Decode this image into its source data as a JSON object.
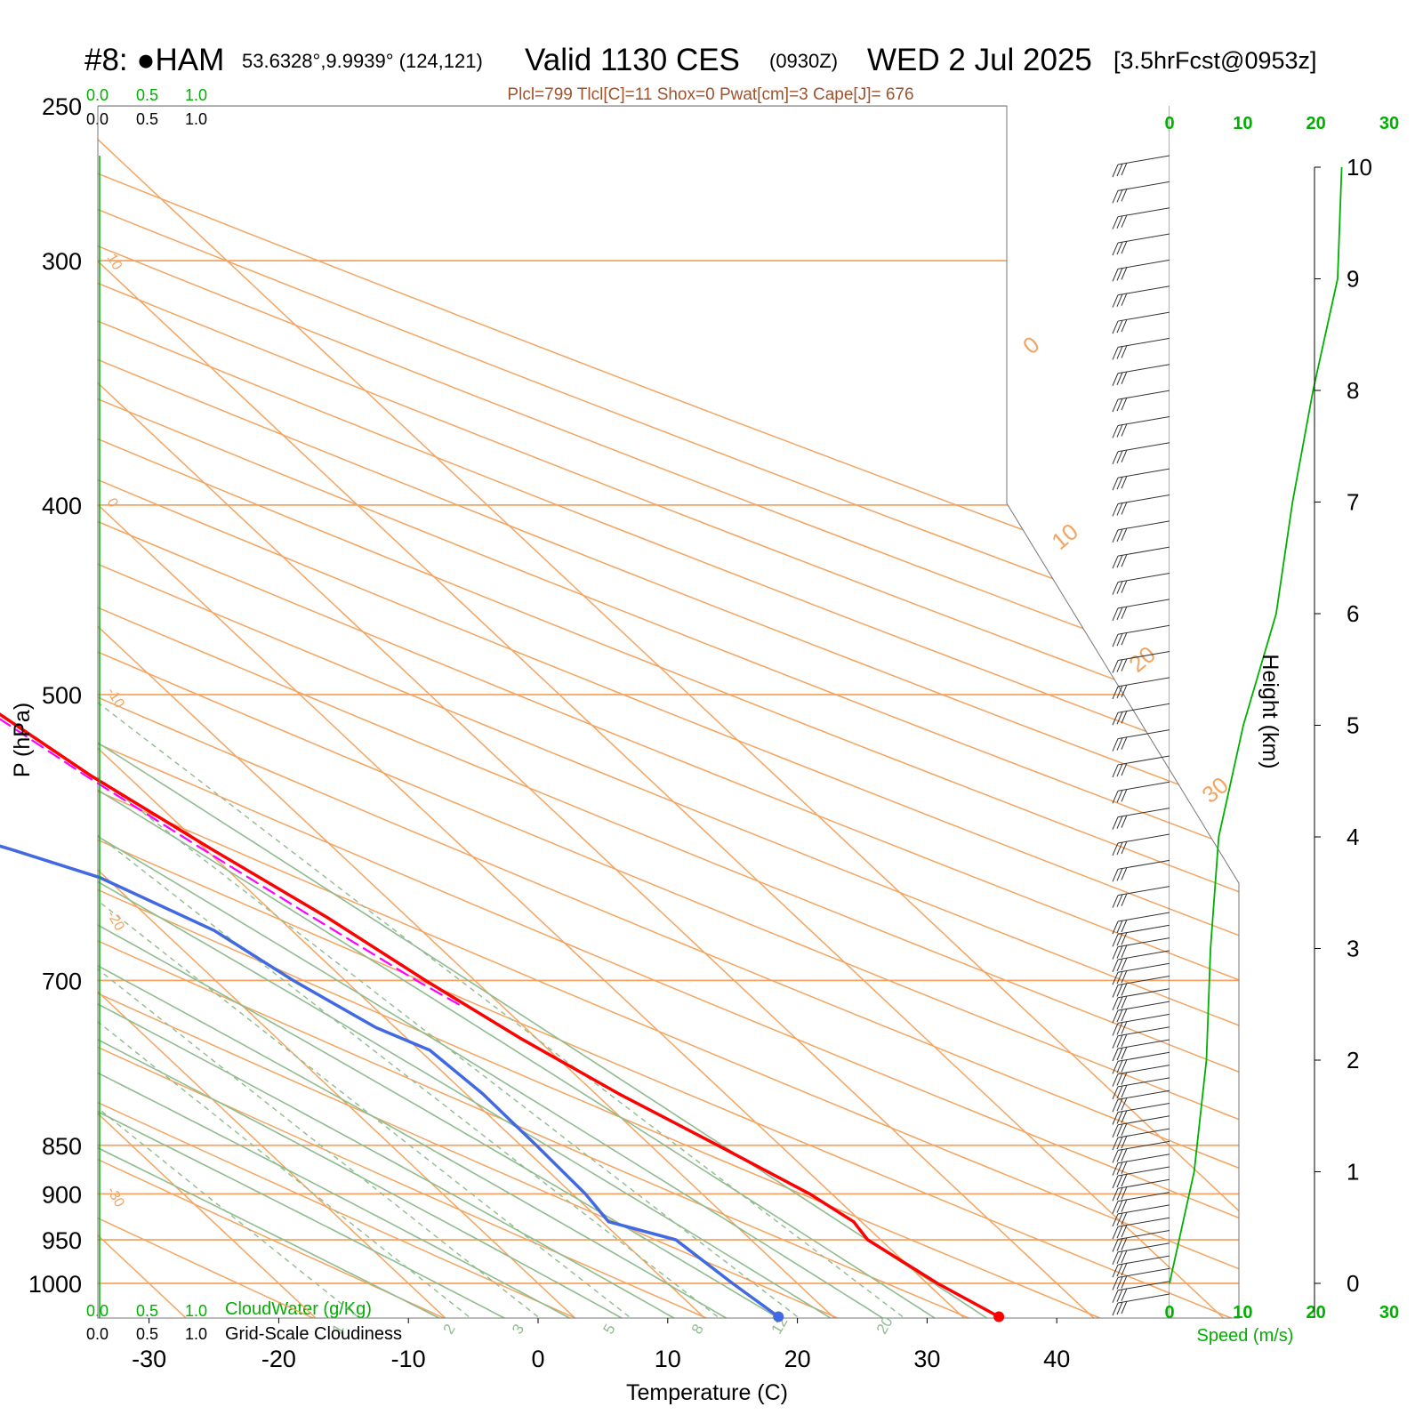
{
  "header": {
    "station": "#8: ●HAM",
    "coords": "53.6328°,9.9939° (124,121)",
    "valid_label": "Valid 1130 CES",
    "zulu": "(0930Z)",
    "date": "WED 2 Jul 2025",
    "forecast": "[3.5hrFcst@0953z]",
    "stats": "Plcl=799 Tlcl[C]=11 Shox=0 Pwat[cm]=3 Cape[J]= 676"
  },
  "colors": {
    "temperature": "#ff0000",
    "dewpoint": "#4169e1",
    "parcel": "#ff00ff",
    "isotherm": "#f4a460",
    "moist_adiabat": "#8fbc8f",
    "mixing_ratio": "#8fbc8f",
    "wind_speed": "#00b000",
    "stats": "#a0522d"
  },
  "cloud_scale": {
    "cloudwater_ticks": [
      "0.0",
      "0.5",
      "1.0"
    ],
    "cloudiness_ticks": [
      "0.0",
      "0.5",
      "1.0"
    ],
    "cloudwater_label": "CloudWater (g/Kg)",
    "cloudiness_label": "Grid-Scale Cloudiness"
  },
  "chart_data": {
    "type": "line",
    "subtype": "skew-T log-P sounding",
    "xlabel": "Temperature (C)",
    "ylabel": "P (hPa)",
    "y2label": "Height (km)",
    "xlim": [
      -30,
      40
    ],
    "ylim": [
      1050,
      250
    ],
    "y_scale": "log",
    "x_ticks": [
      "-30",
      "-20",
      "-10",
      "0",
      "10",
      "20",
      "30",
      "40"
    ],
    "pressure_ticks": [
      "250",
      "300",
      "400",
      "500",
      "700",
      "850",
      "900",
      "950",
      "1000"
    ],
    "height_ticks": [
      "0",
      "1",
      "2",
      "3",
      "4",
      "5",
      "6",
      "7",
      "8",
      "9",
      "10"
    ],
    "mixing_ratio_labels": [
      "1",
      "2",
      "3",
      "5",
      "8",
      "12",
      "20"
    ],
    "isotherm_edge_labels": [
      "10",
      "0",
      "-10",
      "-20",
      "-30"
    ],
    "isotherm_top_labels": [
      "0",
      "10",
      "20",
      "30"
    ],
    "series": [
      {
        "name": "Temperature",
        "points": [
          [
            1040,
            32.8
          ],
          [
            1000,
            30.8
          ],
          [
            950,
            29.0
          ],
          [
            930,
            29.4
          ],
          [
            900,
            28.3
          ],
          [
            850,
            25.2
          ],
          [
            800,
            21.8
          ],
          [
            750,
            18.8
          ],
          [
            700,
            16.2
          ],
          [
            650,
            13.8
          ],
          [
            600,
            10.5
          ],
          [
            550,
            7.2
          ],
          [
            500,
            4.6
          ],
          [
            450,
            2.0
          ],
          [
            400,
            -1.0
          ],
          [
            350,
            -5.0
          ],
          [
            300,
            -10.5
          ],
          [
            262,
            -15.8
          ]
        ]
      },
      {
        "name": "Dewpoint",
        "points": [
          [
            1040,
            15.8
          ],
          [
            1000,
            15.0
          ],
          [
            950,
            14.2
          ],
          [
            930,
            10.5
          ],
          [
            900,
            11.0
          ],
          [
            850,
            11.2
          ],
          [
            800,
            11.3
          ],
          [
            760,
            10.8
          ],
          [
            740,
            8.5
          ],
          [
            700,
            6.0
          ],
          [
            660,
            4.0
          ],
          [
            620,
            -0.5
          ],
          [
            600,
            -5.0
          ],
          [
            550,
            -18.0
          ],
          [
            510,
            -24.0
          ],
          [
            480,
            -26.0
          ],
          [
            450,
            -21.0
          ],
          [
            420,
            -26.0
          ],
          [
            400,
            -30.0
          ],
          [
            375,
            -24.0
          ],
          [
            350,
            -20.0
          ],
          [
            325,
            -21.0
          ],
          [
            300,
            -24.0
          ],
          [
            262,
            -28.0
          ]
        ]
      },
      {
        "name": "Parcel",
        "points": [
          [
            720,
            16.8
          ],
          [
            700,
            15.5
          ],
          [
            650,
            12.7
          ],
          [
            600,
            9.8
          ],
          [
            550,
            6.8
          ],
          [
            500,
            4.0
          ],
          [
            450,
            1.3
          ],
          [
            400,
            -1.8
          ],
          [
            350,
            -5.6
          ],
          [
            300,
            -10.2
          ],
          [
            262,
            -14.6
          ]
        ]
      },
      {
        "name": "Wind speed (m/s)",
        "points": [
          [
            0.0,
            0.0
          ],
          [
            0.5,
            0.3
          ],
          [
            1.0,
            0.6
          ],
          [
            2.0,
            0.9
          ],
          [
            3.0,
            1.0
          ],
          [
            4.0,
            1.2
          ],
          [
            5.0,
            1.8
          ],
          [
            6.0,
            2.6
          ],
          [
            7.0,
            3.0
          ],
          [
            8.0,
            3.5
          ],
          [
            9.0,
            4.1
          ],
          [
            10.0,
            4.2
          ]
        ],
        "xlim": [
          0,
          30
        ],
        "ticks": [
          "0",
          "10",
          "20",
          "30"
        ],
        "label": "Speed (m/s)"
      }
    ],
    "wind_barbs": {
      "count": 60,
      "direction": "west-southwest",
      "note": "wind barbs along right side of diagram"
    }
  }
}
